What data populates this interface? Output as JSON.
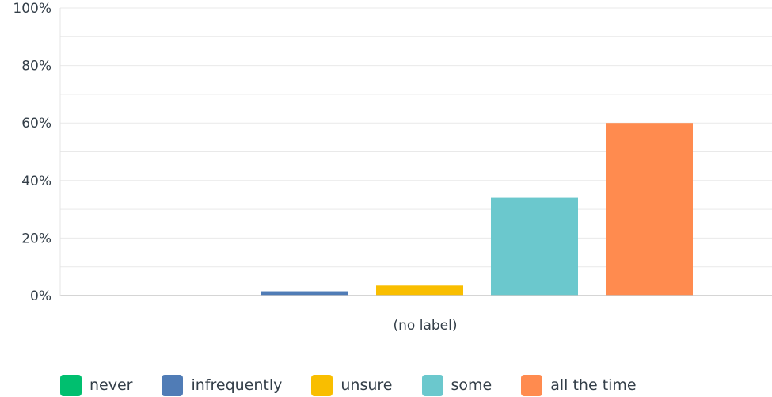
{
  "chart_data": {
    "type": "bar",
    "categories": [
      "(no label)"
    ],
    "series": [
      {
        "name": "never",
        "values": [
          0
        ],
        "color": "#00bf6f"
      },
      {
        "name": "infrequently",
        "values": [
          1.5
        ],
        "color": "#507cb6"
      },
      {
        "name": "unsure",
        "values": [
          3.5
        ],
        "color": "#f9be00"
      },
      {
        "name": "some",
        "values": [
          34
        ],
        "color": "#6bc8cd"
      },
      {
        "name": "all the time",
        "values": [
          60
        ],
        "color": "#ff8b4f"
      }
    ],
    "ylim": [
      0,
      100
    ],
    "yticks": [
      "0%",
      "20%",
      "40%",
      "60%",
      "80%",
      "100%"
    ],
    "grid": true,
    "legend_position": "bottom"
  }
}
